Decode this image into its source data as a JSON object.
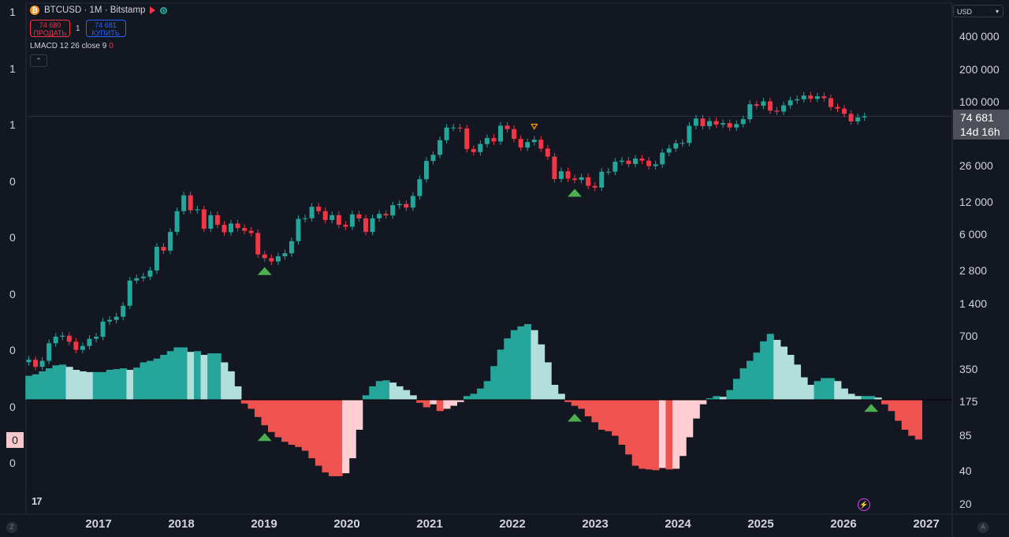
{
  "legend": {
    "symbol_icon": "₿",
    "title": "BTCUSD · 1M · Bitstamp",
    "sell_price": "74 680",
    "sell_label": "ПРОДАТЬ",
    "quantity": "1",
    "buy_price": "74 681",
    "buy_label": "КУПИТЬ",
    "indicator": "LMACD 12 26 close 9",
    "indicator_value": "0",
    "collapse_icon": "⌃"
  },
  "currency": "USD",
  "price_tag": {
    "price": "74 681",
    "countdown": "14d 16h"
  },
  "macd_tag": "0",
  "tv_logo": "17",
  "flash_icon": "⚡",
  "corner_left": "Z",
  "corner_right": "A",
  "left_scale": [
    "1",
    "1",
    "1",
    "0",
    "0",
    "0",
    "0",
    "0",
    "0"
  ],
  "colors": {
    "background": "#131722",
    "up": "#26a69a",
    "down": "#f23645",
    "hist_pos_strong": "#26a69a",
    "hist_pos_weak": "#b2dfdb",
    "hist_neg_strong": "#ef5350",
    "hist_neg_weak": "#ffcdd2",
    "signal": "#4caf50",
    "sell_signal": "#ff9800"
  },
  "chart_data": [
    {
      "type": "candlestick",
      "scale": "log",
      "y_ticks": [
        20,
        40,
        85,
        175,
        350,
        700,
        1400,
        2800,
        6000,
        12000,
        26000,
        100000,
        200000,
        400000
      ],
      "y_tick_labels": [
        "20",
        "40",
        "85",
        "175",
        "350",
        "700",
        "1 400",
        "2 800",
        "6 000",
        "12 000",
        "26 000",
        "100 000",
        "200 000",
        "400 000"
      ],
      "x_tick_labels": [
        "2017",
        "2018",
        "2019",
        "2020",
        "2021",
        "2022",
        "2023",
        "2024",
        "2025",
        "2026",
        "2027"
      ],
      "last_price": 74681,
      "close_series": [
        430,
        370,
        420,
        610,
        700,
        715,
        630,
        530,
        575,
        670,
        700,
        965,
        1000,
        1070,
        1350,
        2300,
        2420,
        2500,
        2850,
        4700,
        4340,
        6450,
        10000,
        14000,
        10200,
        10400,
        6900,
        9200,
        7500,
        6400,
        7700,
        7000,
        6600,
        6300,
        4000,
        3700,
        3450,
        3850,
        4100,
        5300,
        8500,
        8600,
        11000,
        10000,
        8300,
        9200,
        7500,
        7200,
        9350,
        8600,
        6450,
        8600,
        9450,
        9150,
        11350,
        11650,
        10800,
        13800,
        19700,
        29000,
        33000,
        45000,
        58800,
        58800,
        57700,
        37300,
        35000,
        41500,
        47100,
        43800,
        61300,
        57000,
        46300,
        38500,
        43200,
        45500,
        37700,
        31800,
        19800,
        23300,
        20000,
        19400,
        20500,
        17100,
        16500,
        23100,
        23100,
        28500,
        29200,
        27200,
        30500,
        29200,
        26000,
        27000,
        34600,
        37700,
        42200,
        42500,
        61100,
        71300,
        60600,
        67500,
        62700,
        64600,
        58900,
        63300,
        70200,
        96400,
        93400,
        102400,
        84300,
        82500,
        94200,
        104600,
        107100,
        115800,
        108200,
        114000,
        109600,
        90900,
        87800,
        78600,
        67000,
        73000,
        74681
      ],
      "bearish_signal_index": 75,
      "bullish_signal_indices": [
        35,
        81,
        125
      ]
    },
    {
      "type": "histogram",
      "name": "LMACD 12 26 close 9",
      "values": [
        0.32,
        0.34,
        0.38,
        0.42,
        0.46,
        0.47,
        0.44,
        0.4,
        0.38,
        0.37,
        0.37,
        0.37,
        0.4,
        0.41,
        0.42,
        0.4,
        0.43,
        0.5,
        0.52,
        0.55,
        0.6,
        0.65,
        0.7,
        0.7,
        0.64,
        0.65,
        0.6,
        0.62,
        0.62,
        0.5,
        0.38,
        0.18,
        -0.05,
        -0.12,
        -0.23,
        -0.34,
        -0.43,
        -0.5,
        -0.56,
        -0.6,
        -0.63,
        -0.68,
        -0.78,
        -0.88,
        -0.97,
        -1.02,
        -1.02,
        -0.98,
        -0.78,
        -0.4,
        0.06,
        0.18,
        0.25,
        0.26,
        0.23,
        0.18,
        0.13,
        0.06,
        -0.04,
        -0.1,
        -0.06,
        -0.15,
        -0.12,
        -0.08,
        -0.03,
        0.05,
        0.08,
        0.15,
        0.25,
        0.45,
        0.67,
        0.82,
        0.93,
        0.98,
        1.01,
        0.93,
        0.74,
        0.5,
        0.2,
        0.08,
        -0.03,
        -0.08,
        -0.12,
        -0.22,
        -0.3,
        -0.4,
        -0.42,
        -0.48,
        -0.6,
        -0.73,
        -0.88,
        -0.92,
        -0.93,
        -0.94,
        -0.91,
        -0.93,
        -0.92,
        -0.75,
        -0.5,
        -0.25,
        -0.06,
        0.02,
        0.05,
        0.04,
        0.13,
        0.28,
        0.42,
        0.52,
        0.63,
        0.78,
        0.88,
        0.8,
        0.71,
        0.6,
        0.47,
        0.3,
        0.2,
        0.25,
        0.29,
        0.29,
        0.25,
        0.15,
        0.08,
        0.05,
        0.05,
        0.05,
        0.03,
        -0.06,
        -0.15,
        -0.28,
        -0.4,
        -0.48,
        -0.53
      ]
    }
  ]
}
